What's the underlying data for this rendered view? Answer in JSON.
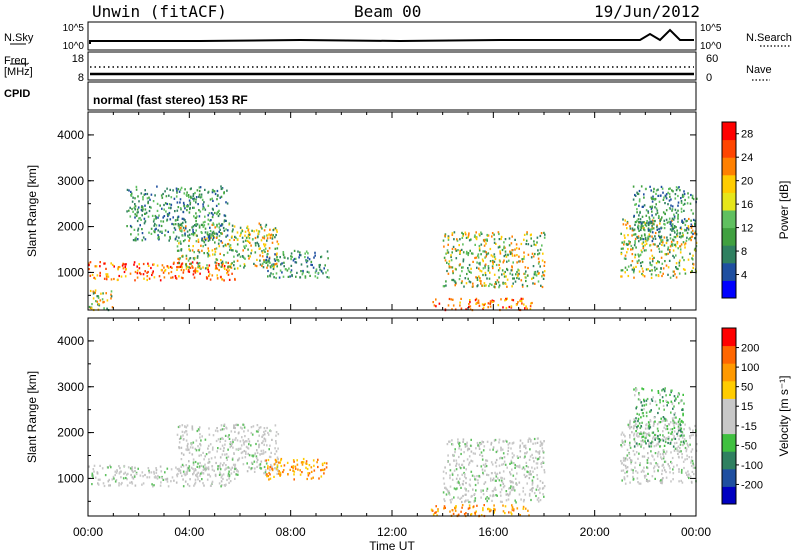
{
  "header": {
    "radar": "Unwin (fitACF)",
    "beam": "Beam 00",
    "date": "19/Jun/2012"
  },
  "panels": {
    "nsky_label": "N.Sky",
    "nsearch_label": "N.Search",
    "freq_label": "Freq.",
    "freq_unit": "[MHz]",
    "cpid_label": "CPID",
    "nave_label": "Nave",
    "noise_ticks": [
      "10^5",
      "10^0"
    ],
    "freq_ticks": [
      "18",
      "8"
    ],
    "nave_ticks": [
      "60",
      "0"
    ],
    "mode_text": "normal (fast stereo) 153 RF"
  },
  "colors": {
    "power_scale": [
      "#0000ff",
      "#1f4fa0",
      "#2f8060",
      "#40a040",
      "#60c060",
      "#e6e61a",
      "#ffcc00",
      "#ff8000",
      "#ff4500",
      "#ff0000"
    ],
    "velocity_scale": [
      "#0000c0",
      "#1f4fa0",
      "#2f8060",
      "#40c040",
      "#c8c8c8",
      "#c8c8c8",
      "#ffcc00",
      "#ff9900",
      "#ff6600",
      "#ff0000"
    ]
  },
  "chart_data": [
    {
      "type": "heatmap",
      "title": "Power",
      "xlabel": "Time UT",
      "ylabel": "Slant Range [km]",
      "xlim": [
        "00:00",
        "24:00"
      ],
      "ylim": [
        180,
        4500
      ],
      "x_ticks": [
        "00:00",
        "04:00",
        "08:00",
        "12:00",
        "16:00",
        "20:00",
        "00:00"
      ],
      "y_ticks": [
        "1000",
        "2000",
        "3000",
        "4000"
      ],
      "colorbar_label": "Power [dB]",
      "colorbar_ticks": [
        "4",
        "8",
        "12",
        "16",
        "20",
        "24",
        "28"
      ],
      "colorbar_range": [
        0,
        30
      ],
      "regions": [
        {
          "t0": 0.0,
          "t1": 5.8,
          "r0": 850,
          "r1": 1250,
          "level": "high"
        },
        {
          "t0": 3.5,
          "t1": 7.5,
          "r0": 1100,
          "r1": 2100,
          "level": "mid"
        },
        {
          "t0": 1.5,
          "t1": 5.5,
          "r0": 1700,
          "r1": 2900,
          "level": "low"
        },
        {
          "t0": 7.0,
          "t1": 9.5,
          "r0": 900,
          "r1": 1500,
          "level": "low"
        },
        {
          "t0": 0.0,
          "t1": 1.0,
          "r0": 200,
          "r1": 650,
          "level": "mid"
        },
        {
          "t0": 13.5,
          "t1": 17.5,
          "r0": 200,
          "r1": 450,
          "level": "high"
        },
        {
          "t0": 14.0,
          "t1": 18.0,
          "r0": 700,
          "r1": 1900,
          "level": "mid"
        },
        {
          "t0": 21.0,
          "t1": 24.0,
          "r0": 900,
          "r1": 2200,
          "level": "mid"
        },
        {
          "t0": 21.5,
          "t1": 24.0,
          "r0": 1700,
          "r1": 2900,
          "level": "low"
        }
      ]
    },
    {
      "type": "heatmap",
      "title": "Velocity",
      "xlabel": "Time UT",
      "ylabel": "Slant Range [km]",
      "xlim": [
        "00:00",
        "24:00"
      ],
      "ylim": [
        180,
        4500
      ],
      "x_ticks": [
        "00:00",
        "04:00",
        "08:00",
        "12:00",
        "16:00",
        "20:00",
        "00:00"
      ],
      "y_ticks": [
        "1000",
        "2000",
        "3000",
        "4000"
      ],
      "colorbar_label": "Velocity [m s⁻¹]",
      "colorbar_ticks": [
        "200",
        "100",
        "50",
        "15",
        "-15",
        "-50",
        "-100",
        "-200"
      ],
      "colorbar_range": [
        -250,
        250
      ],
      "regions": [
        {
          "t0": 0.0,
          "t1": 5.8,
          "r0": 850,
          "r1": 1300,
          "level": "ground"
        },
        {
          "t0": 3.5,
          "t1": 7.5,
          "r0": 1100,
          "r1": 2200,
          "level": "ground"
        },
        {
          "t0": 7.0,
          "t1": 9.5,
          "r0": 1000,
          "r1": 1450,
          "level": "away"
        },
        {
          "t0": 14.0,
          "t1": 18.0,
          "r0": 500,
          "r1": 1900,
          "level": "ground"
        },
        {
          "t0": 13.5,
          "t1": 17.5,
          "r0": 200,
          "r1": 450,
          "level": "away"
        },
        {
          "t0": 21.0,
          "t1": 24.0,
          "r0": 900,
          "r1": 2300,
          "level": "ground"
        },
        {
          "t0": 21.5,
          "t1": 23.5,
          "r0": 1700,
          "r1": 3000,
          "level": "toward"
        }
      ]
    }
  ]
}
